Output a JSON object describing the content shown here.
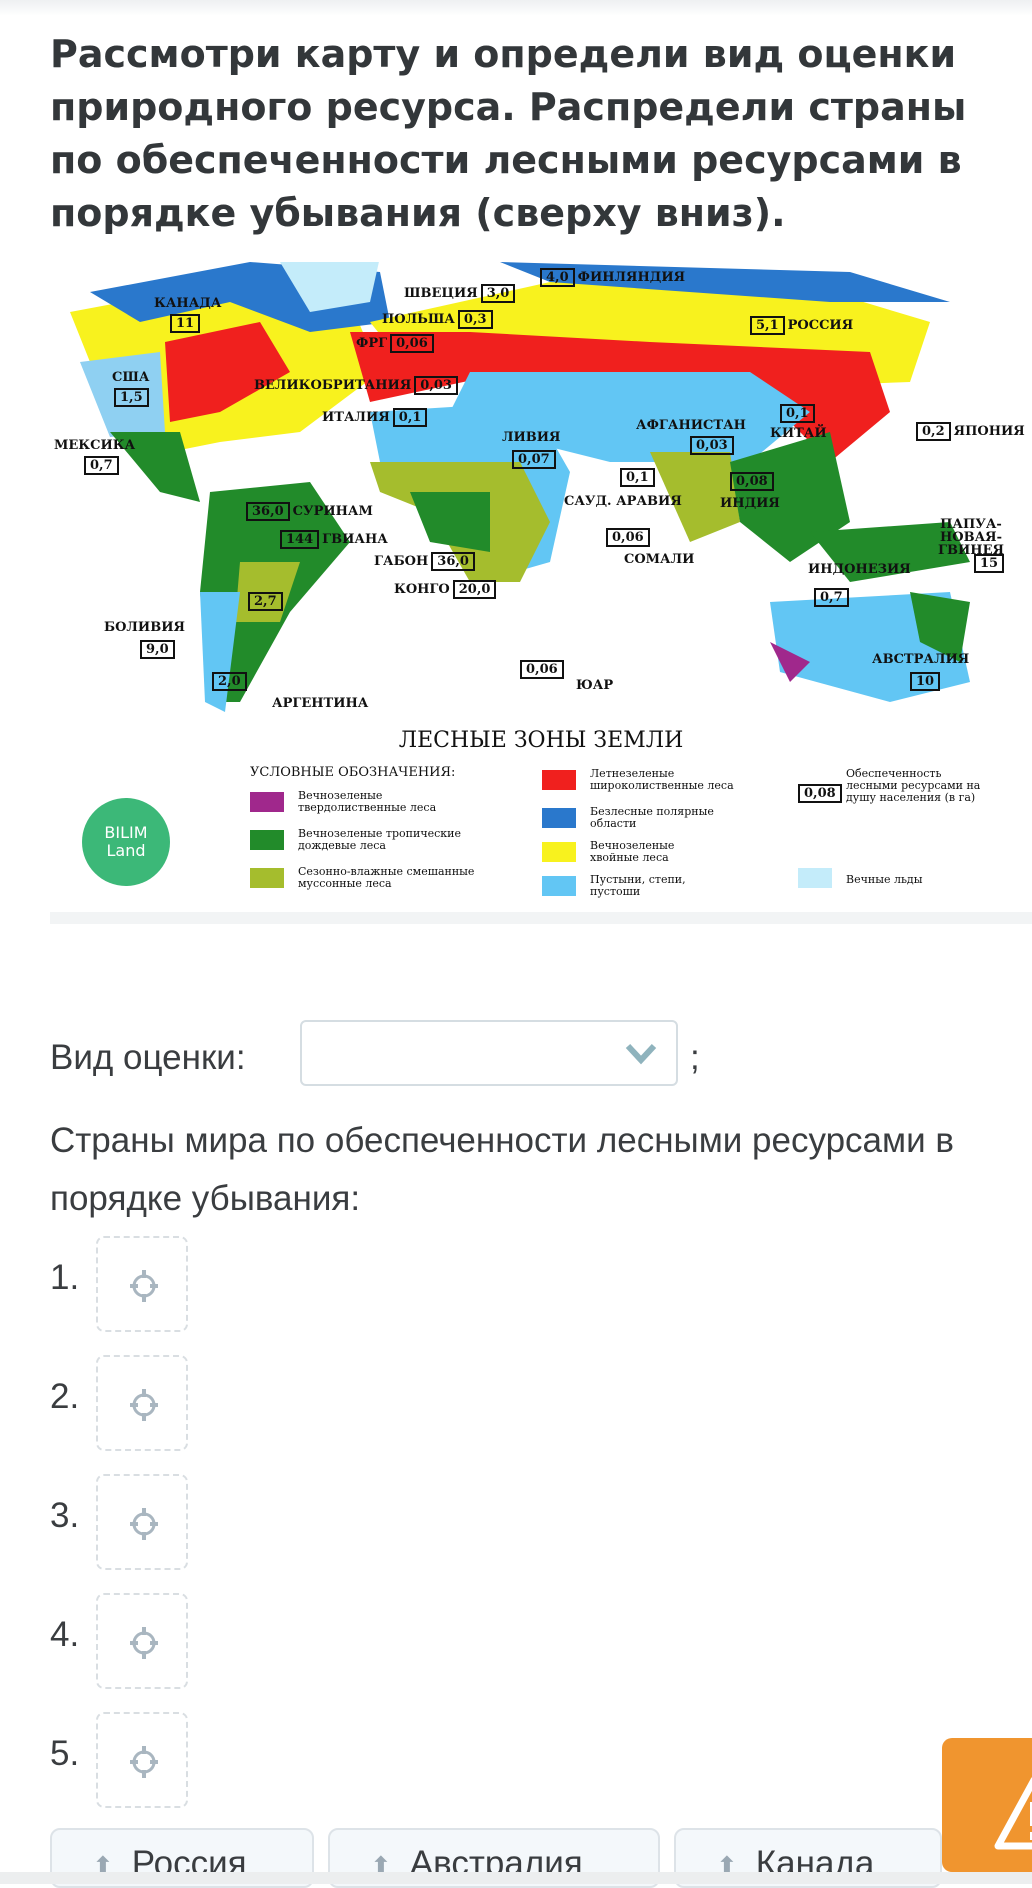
{
  "question": {
    "title": "Рассмотри карту и определи вид оценки природного ресурса. Распредели страны по обеспеченности лесными ресурсами в порядке убывания (сверху вниз).",
    "assessment_label": "Вид оценки:",
    "assessment_value": "",
    "semicolon": ";",
    "order_label": "Страны мира по обеспеченности лесными ресурсами в порядке убывания:",
    "slots": [
      "1.",
      "2.",
      "3.",
      "4.",
      "5."
    ],
    "options": [
      "Россия",
      "Австралия",
      "Канада"
    ]
  },
  "map": {
    "title": "ЛЕСНЫЕ ЗОНЫ ЗЕМЛИ",
    "labels": [
      {
        "name": "КАНАДА",
        "value": "11"
      },
      {
        "name": "ШВЕЦИЯ",
        "value": "3,0"
      },
      {
        "name": "ФИНЛЯНДИЯ",
        "value": "4,0"
      },
      {
        "name": "ПОЛЬША",
        "value": "0,3"
      },
      {
        "name": "ФРГ",
        "value": "0,06"
      },
      {
        "name": "РОССИЯ",
        "value": "5,1"
      },
      {
        "name": "США",
        "value": "1,5"
      },
      {
        "name": "ВЕЛИКОБРИТАНИЯ",
        "value": "0,03"
      },
      {
        "name": "ИТАЛИЯ",
        "value": "0,1"
      },
      {
        "name": "ЛИВИЯ",
        "value": "0,07"
      },
      {
        "name": "АФГАНИСТАН",
        "value": "0,03"
      },
      {
        "name": "КИТАЙ",
        "value": "0,1"
      },
      {
        "name": "ЯПОНИЯ",
        "value": "0,2"
      },
      {
        "name": "МЕКСИКА",
        "value": "0,7"
      },
      {
        "name": "СУРИНАМ",
        "value": "36,0"
      },
      {
        "name": "ГВИАНА",
        "value": "144"
      },
      {
        "name": "САУД. АРАВИЯ",
        "value": "0,1"
      },
      {
        "name": "ИНДИЯ",
        "value": "0,08"
      },
      {
        "name": "ПАПУА-НОВАЯ-ГВИНЕЯ",
        "value": "15"
      },
      {
        "name": "ГАБОН",
        "value": "36,0"
      },
      {
        "name": "КОНГО",
        "value": "20,0"
      },
      {
        "name": "СОМАЛИ",
        "value": "0,06"
      },
      {
        "name": "ИНДОНЕЗИЯ",
        "value": "0,7"
      },
      {
        "name": "",
        "value": "2,7"
      },
      {
        "name": "БОЛИВИЯ",
        "value": "9,0"
      },
      {
        "name": "АРГЕНТИНА",
        "value": "2,0"
      },
      {
        "name": "ЮАР",
        "value": "0,06"
      },
      {
        "name": "АВСТРАЛИЯ",
        "value": "10"
      }
    ],
    "legend": {
      "heading": "УСЛОВНЫЕ ОБОЗНАЧЕНИЯ:",
      "items": [
        {
          "text": "Вечнозеленые твердолиственные леса",
          "color": "#a0288c"
        },
        {
          "text": "Вечнозеленые тропические дождевые леса",
          "color": "#228b2a"
        },
        {
          "text": "Сезонно-влажные смешанные муссонные леса",
          "color": "#a5bd2d"
        },
        {
          "text": "Летнезеленые широколиственные леса",
          "color": "#f0201e"
        },
        {
          "text": "Безлесные полярные области",
          "color": "#2a78cc"
        },
        {
          "text": "Вечнозеленые хвойные леса",
          "color": "#f8f21e"
        },
        {
          "text": "Пустыни, степи, пустоши",
          "color": "#62c6f4"
        },
        {
          "text": "Вечные льды",
          "color": "#c4ecfa"
        }
      ],
      "provision_sample": "0,08",
      "provision_text": "Обеспеченность лесными ресурсами на душу населения (в га)"
    },
    "logo": "BILIM Land"
  },
  "colors": {
    "accent": "#f0952f",
    "logo": "#3cb878",
    "text": "#3a3d40",
    "border": "#d5dde2"
  }
}
